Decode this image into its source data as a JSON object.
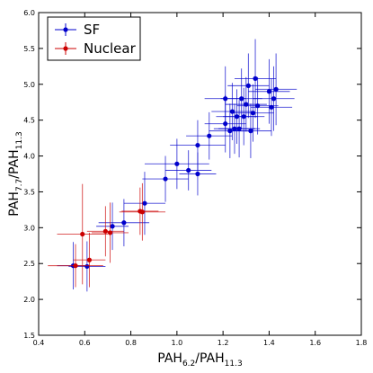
{
  "chart_data": {
    "type": "scatter",
    "xlabel": "PAH6.2/PAH11.3",
    "ylabel": "PAH7.7/PAH11.3",
    "xlabel_parts": {
      "main": "PAH",
      "sub1": "6.2",
      "sep": "/PAH",
      "sub2": "11.3"
    },
    "ylabel_parts": {
      "main": "PAH",
      "sub1": "7.7",
      "sep": "/PAH",
      "sub2": "11.3"
    },
    "xlim": [
      0.4,
      1.8
    ],
    "ylim": [
      1.5,
      6.0
    ],
    "xticks": [
      "0.4",
      "0.6",
      "0.8",
      "1.0",
      "1.2",
      "1.4",
      "1.6",
      "1.8"
    ],
    "xtick_values": [
      0.4,
      0.6,
      0.8,
      1.0,
      1.2,
      1.4,
      1.6,
      1.8
    ],
    "yticks": [
      "1.5",
      "2.0",
      "2.5",
      "3.0",
      "3.5",
      "4.0",
      "4.5",
      "5.0",
      "5.5",
      "6.0"
    ],
    "ytick_values": [
      1.5,
      2.0,
      2.5,
      3.0,
      3.5,
      4.0,
      4.5,
      5.0,
      5.5,
      6.0
    ],
    "grid": false,
    "legend_position": "top-left",
    "series": [
      {
        "name": "SF",
        "color": "#0000cc",
        "points": [
          {
            "x": 0.55,
            "y": 2.47,
            "xerr": 0.07,
            "yerr": 0.33
          },
          {
            "x": 0.61,
            "y": 2.46,
            "xerr": 0.08,
            "yerr": 0.35
          },
          {
            "x": 0.72,
            "y": 3.02,
            "xerr": 0.07,
            "yerr": 0.33
          },
          {
            "x": 0.77,
            "y": 3.07,
            "xerr": 0.11,
            "yerr": 0.33
          },
          {
            "x": 0.86,
            "y": 3.34,
            "xerr": 0.09,
            "yerr": 0.44
          },
          {
            "x": 0.95,
            "y": 3.68,
            "xerr": 0.1,
            "yerr": 0.32
          },
          {
            "x": 1.0,
            "y": 3.89,
            "xerr": 0.14,
            "yerr": 0.35
          },
          {
            "x": 1.05,
            "y": 3.8,
            "xerr": 0.1,
            "yerr": 0.28
          },
          {
            "x": 1.09,
            "y": 3.75,
            "xerr": 0.08,
            "yerr": 0.3
          },
          {
            "x": 1.09,
            "y": 4.15,
            "xerr": 0.12,
            "yerr": 0.35
          },
          {
            "x": 1.14,
            "y": 4.28,
            "xerr": 0.1,
            "yerr": 0.33
          },
          {
            "x": 1.21,
            "y": 4.8,
            "xerr": 0.09,
            "yerr": 0.45
          },
          {
            "x": 1.21,
            "y": 4.45,
            "xerr": 0.09,
            "yerr": 0.4
          },
          {
            "x": 1.23,
            "y": 4.35,
            "xerr": 0.09,
            "yerr": 0.38
          },
          {
            "x": 1.24,
            "y": 4.62,
            "xerr": 0.09,
            "yerr": 0.4
          },
          {
            "x": 1.25,
            "y": 4.38,
            "xerr": 0.09,
            "yerr": 0.35
          },
          {
            "x": 1.26,
            "y": 4.55,
            "xerr": 0.09,
            "yerr": 0.38
          },
          {
            "x": 1.27,
            "y": 4.38,
            "xerr": 0.09,
            "yerr": 0.4
          },
          {
            "x": 1.28,
            "y": 4.8,
            "xerr": 0.09,
            "yerr": 0.42
          },
          {
            "x": 1.29,
            "y": 4.55,
            "xerr": 0.09,
            "yerr": 0.4
          },
          {
            "x": 1.3,
            "y": 4.72,
            "xerr": 0.09,
            "yerr": 0.38
          },
          {
            "x": 1.31,
            "y": 4.98,
            "xerr": 0.09,
            "yerr": 0.45
          },
          {
            "x": 1.32,
            "y": 4.35,
            "xerr": 0.09,
            "yerr": 0.38
          },
          {
            "x": 1.33,
            "y": 4.6,
            "xerr": 0.09,
            "yerr": 0.4
          },
          {
            "x": 1.34,
            "y": 5.08,
            "xerr": 0.09,
            "yerr": 0.55
          },
          {
            "x": 1.35,
            "y": 4.7,
            "xerr": 0.09,
            "yerr": 0.4
          },
          {
            "x": 1.4,
            "y": 4.9,
            "xerr": 0.09,
            "yerr": 0.45
          },
          {
            "x": 1.41,
            "y": 4.68,
            "xerr": 0.09,
            "yerr": 0.4
          },
          {
            "x": 1.42,
            "y": 4.8,
            "xerr": 0.09,
            "yerr": 0.45
          },
          {
            "x": 1.43,
            "y": 4.93,
            "xerr": 0.09,
            "yerr": 0.5
          }
        ]
      },
      {
        "name": "Nuclear",
        "color": "#cc0000",
        "points": [
          {
            "x": 0.56,
            "y": 2.47,
            "xerr": 0.12,
            "yerr": 0.3
          },
          {
            "x": 0.59,
            "y": 2.91,
            "xerr": 0.11,
            "yerr": 0.7
          },
          {
            "x": 0.62,
            "y": 2.55,
            "xerr": 0.07,
            "yerr": 0.38
          },
          {
            "x": 0.69,
            "y": 2.95,
            "xerr": 0.08,
            "yerr": 0.35
          },
          {
            "x": 0.71,
            "y": 2.93,
            "xerr": 0.08,
            "yerr": 0.42
          },
          {
            "x": 0.84,
            "y": 3.23,
            "xerr": 0.08,
            "yerr": 0.33
          },
          {
            "x": 0.85,
            "y": 3.22,
            "xerr": 0.1,
            "yerr": 0.4
          }
        ]
      }
    ]
  }
}
